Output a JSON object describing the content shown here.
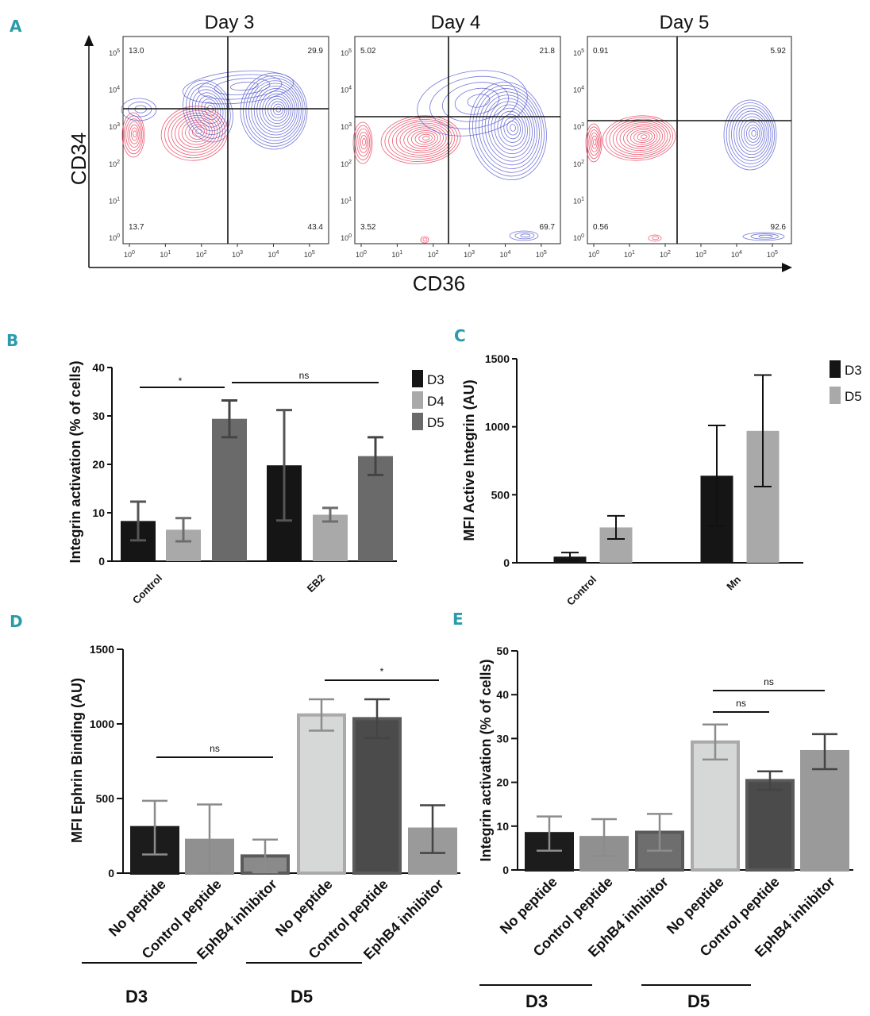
{
  "panel_labels": {
    "a": "A",
    "b": "B",
    "c": "C",
    "d": "D",
    "e": "E"
  },
  "chart_data": [
    {
      "id": "A",
      "type": "scatter",
      "subtype": "flow cytometry contour plots",
      "xlabel": "CD36",
      "ylabel": "CD34",
      "x_ticks": [
        "10^0",
        "10^1",
        "10^2",
        "10^3",
        "10^4",
        "10^5"
      ],
      "y_ticks": [
        "10^0",
        "10^1",
        "10^2",
        "10^3",
        "10^4",
        "10^5"
      ],
      "panels": [
        {
          "title": "Day 3",
          "quadrants": {
            "upper_left": "13.0",
            "upper_right": "29.9",
            "lower_left": "13.7",
            "lower_right": "43.4"
          }
        },
        {
          "title": "Day 4",
          "quadrants": {
            "upper_left": "5.02",
            "upper_right": "21.8",
            "lower_left": "3.52",
            "lower_right": "69.7"
          }
        },
        {
          "title": "Day 5",
          "quadrants": {
            "upper_left": "0.91",
            "upper_right": "5.92",
            "lower_left": "0.56",
            "lower_right": "92.6"
          }
        }
      ],
      "colors": {
        "population_1": "#e8405a",
        "population_2": "#5a5fd0"
      }
    },
    {
      "id": "B",
      "type": "bar",
      "ylabel": "Integrin activation (% of cells)",
      "ylim": [
        0,
        40
      ],
      "yticks": [
        "0",
        "10",
        "20",
        "30",
        "40"
      ],
      "categories": [
        "Control",
        "EB2"
      ],
      "series": [
        {
          "name": "D3",
          "color": "#151515",
          "values": [
            8.3,
            19.8
          ],
          "errors": [
            4.0,
            11.4
          ]
        },
        {
          "name": "D4",
          "color": "#a9a9a9",
          "values": [
            6.5,
            9.6
          ],
          "errors": [
            2.4,
            1.4
          ]
        },
        {
          "name": "D5",
          "color": "#6a6a6a",
          "values": [
            29.4,
            21.7
          ],
          "errors": [
            3.8,
            3.9
          ]
        }
      ],
      "annotations": [
        "*",
        "ns"
      ]
    },
    {
      "id": "C",
      "type": "bar",
      "ylabel": "MFI Active Integrin (AU)",
      "ylim": [
        0,
        1500
      ],
      "yticks": [
        "0",
        "500",
        "1000",
        "1500"
      ],
      "categories": [
        "Control",
        "Mn"
      ],
      "series": [
        {
          "name": "D3",
          "color": "#151515",
          "values": [
            45,
            640
          ],
          "errors": [
            30,
            370
          ]
        },
        {
          "name": "D5",
          "color": "#a9a9a9",
          "values": [
            260,
            970
          ],
          "errors": [
            85,
            410
          ]
        }
      ]
    },
    {
      "id": "D",
      "type": "bar",
      "ylabel": "MFI Ephrin Binding (AU)",
      "ylim": [
        0,
        1500
      ],
      "yticks": [
        "0",
        "500",
        "1000",
        "1500"
      ],
      "categories": [
        "No peptide",
        "Control peptide",
        "EphB4 inhibitor",
        "No peptide",
        "Control peptide",
        "EphB4 inhibitor"
      ],
      "values": [
        305,
        220,
        115,
        1060,
        1035,
        295
      ],
      "errors": [
        180,
        240,
        110,
        105,
        130,
        160
      ],
      "bar_fill": [
        "#1c1c1c",
        "#909090",
        "#8a8a8a",
        "#d5d8d6",
        "#4b4b4b",
        "#9a9a9a"
      ],
      "bar_edge": [
        "#1c1c1c",
        "#909090",
        "#5a5a5a",
        "#a9aaa9",
        "#5a5a5a",
        "#9a9a9a"
      ],
      "groups": [
        "D3",
        "D5"
      ],
      "annotations": [
        "ns",
        "*"
      ]
    },
    {
      "id": "E",
      "type": "bar",
      "ylabel": "Integrin activation (% of cells)",
      "ylim": [
        0,
        50
      ],
      "yticks": [
        "0",
        "10",
        "20",
        "30",
        "40",
        "50"
      ],
      "categories": [
        "No peptide",
        "Control peptide",
        "EphB4 inhibitor",
        "No peptide",
        "Control peptide",
        "EphB4 inhibitor"
      ],
      "values": [
        8.3,
        7.4,
        8.6,
        29.2,
        20.4,
        27.0
      ],
      "errors": [
        3.9,
        4.2,
        4.2,
        4.0,
        2.1,
        4.0
      ],
      "bar_fill": [
        "#1c1c1c",
        "#909090",
        "#6e6e6e",
        "#d5d8d6",
        "#4b4b4b",
        "#9a9a9a"
      ],
      "bar_edge": [
        "#1c1c1c",
        "#909090",
        "#5a5a5a",
        "#a9aaa9",
        "#5a5a5a",
        "#9a9a9a"
      ],
      "groups": [
        "D3",
        "D5"
      ],
      "annotations": [
        "ns",
        "ns"
      ]
    }
  ]
}
